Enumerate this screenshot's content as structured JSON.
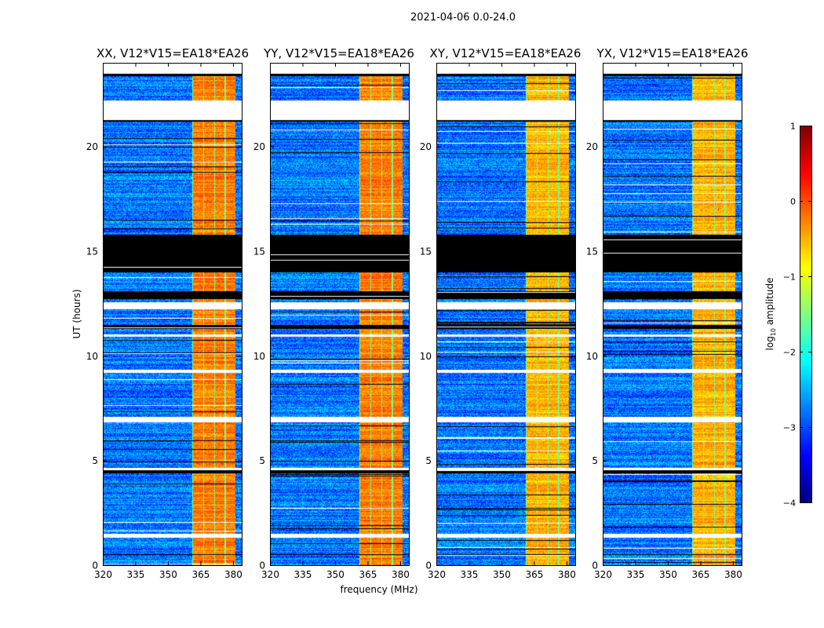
{
  "suptitle": "2021-04-06 0.0-24.0",
  "chart_data": {
    "type": "heatmap",
    "panels": [
      {
        "title": "XX, V12*V15=EA18*EA26"
      },
      {
        "title": "YY, V12*V15=EA18*EA26"
      },
      {
        "title": "XY, V12*V15=EA18*EA26"
      },
      {
        "title": "YX, V12*V15=EA18*EA26"
      }
    ],
    "xlabel": "frequency (MHz)",
    "ylabel": "UT (hours)",
    "xlim": [
      320,
      384
    ],
    "ylim": [
      0,
      24
    ],
    "xticks": [
      "320",
      "335",
      "350",
      "365",
      "380"
    ],
    "xtick_values": [
      320,
      335,
      350,
      365,
      380
    ],
    "yticks": [
      "0",
      "5",
      "10",
      "15",
      "20"
    ],
    "ytick_values": [
      0,
      5,
      10,
      15,
      20
    ],
    "colorbar": {
      "label": "log10 amplitude",
      "label_main": "log",
      "label_sub": "10",
      "label_rest": " amplitude",
      "range": [
        -4,
        1
      ],
      "ticks": [
        "1",
        "0",
        "−1",
        "−2",
        "−3",
        "−4"
      ],
      "tick_values": [
        1,
        0,
        -1,
        -2,
        -3,
        -4
      ],
      "colormap": "jet"
    },
    "background_level": -2.8,
    "bright_band_mhz": [
      361,
      381
    ],
    "bright_band_level": -0.5,
    "no_data_hours": [
      [
        21.3,
        22.2
      ],
      [
        1.35,
        1.5
      ],
      [
        6.85,
        7.1
      ],
      [
        9.2,
        9.35
      ],
      [
        10.95,
        11.05
      ],
      [
        12.25,
        12.6
      ],
      [
        4.55,
        4.65
      ]
    ],
    "flagged_hours": [
      [
        14.0,
        15.8
      ],
      [
        12.75,
        13.1
      ],
      [
        21.2,
        21.35
      ],
      [
        11.3,
        11.5
      ],
      [
        4.4,
        4.55
      ],
      [
        0.5,
        0.55
      ],
      [
        23.4,
        23.5
      ]
    ]
  }
}
